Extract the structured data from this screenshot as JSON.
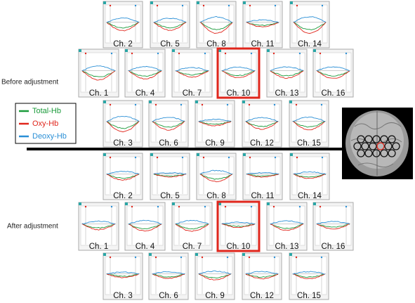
{
  "before": {
    "label": "Before adjustment",
    "rows": [
      [
        "Ch. 2",
        "Ch. 5",
        "Ch. 8",
        "Ch. 11",
        "Ch. 14"
      ],
      [
        "Ch. 1",
        "Ch. 4",
        "Ch. 7",
        "Ch. 10",
        "Ch. 13",
        "Ch. 16"
      ],
      [
        "Ch. 3",
        "Ch. 6",
        "Ch. 9",
        "Ch. 12",
        "Ch. 15"
      ]
    ]
  },
  "after": {
    "label": "After adjustment",
    "rows": [
      [
        "Ch. 2",
        "Ch. 5",
        "Ch. 8",
        "Ch. 11",
        "Ch. 14"
      ],
      [
        "Ch. 1",
        "Ch. 4",
        "Ch. 7",
        "Ch. 10",
        "Ch. 13",
        "Ch. 16"
      ],
      [
        "Ch. 3",
        "Ch. 6",
        "Ch. 9",
        "Ch. 12",
        "Ch. 15"
      ]
    ]
  },
  "legend": [
    {
      "name": "Total-Hb",
      "color": "#1a9a3a"
    },
    {
      "name": "Oxy-Hb",
      "color": "#e0261c"
    },
    {
      "name": "Deoxy-Hb",
      "color": "#2a8fd6"
    }
  ]
}
